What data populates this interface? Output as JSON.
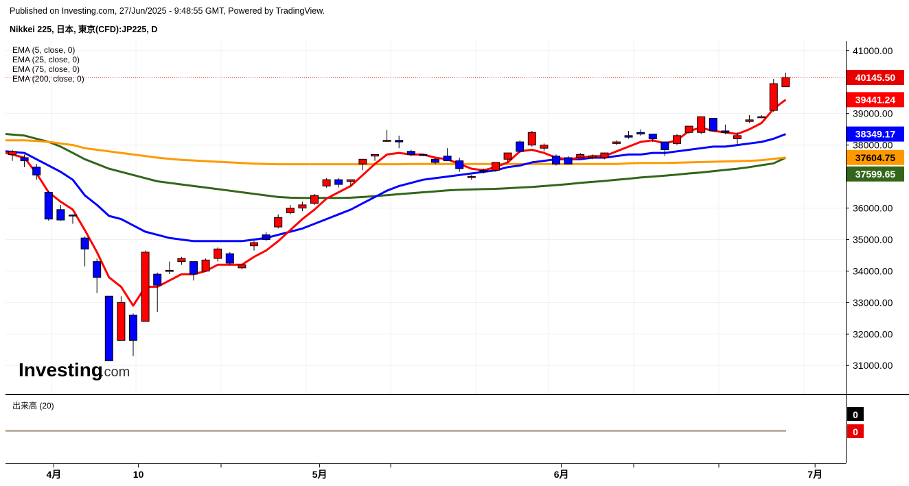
{
  "header": {
    "published": "Published on Investing.com, 27/Jun/2025 - 9:48:55 GMT, Powered by TradingView.",
    "symbol": "Nikkei 225, 日本, 東京(CFD):JP225, D"
  },
  "logo_text": {
    "main": "Investing",
    "suffix": ".com"
  },
  "volume_panel": {
    "label": "出来高 (20)",
    "values": [
      "0",
      "0"
    ]
  },
  "colors": {
    "up_candle": "#ff0000",
    "down_candle": "#0000ff",
    "ema5": "#ff0000",
    "ema25": "#0000ff",
    "ema75": "#ff9900",
    "ema200": "#33661a"
  },
  "chart_data": {
    "type": "candlestick",
    "ylim": [
      30200,
      41300
    ],
    "y_ticks": [
      {
        "value": 31000,
        "label": "31000.00"
      },
      {
        "value": 32000,
        "label": "32000.00"
      },
      {
        "value": 33000,
        "label": "33000.00"
      },
      {
        "value": 34000,
        "label": "34000.00"
      },
      {
        "value": 35000,
        "label": "35000.00"
      },
      {
        "value": 36000,
        "label": "36000.00"
      },
      {
        "value": 38000,
        "label": "38000.00"
      },
      {
        "value": 39000,
        "label": "39000.00"
      },
      {
        "value": 41000,
        "label": "41000.00"
      }
    ],
    "x_ticks": [
      {
        "label": "4月",
        "index": 4
      },
      {
        "label": "10",
        "index": 11
      },
      {
        "label": "5月",
        "index": 26
      },
      {
        "label": "6月",
        "index": 46
      },
      {
        "label": "7月",
        "index": 67
      }
    ],
    "candles": [
      {
        "o": 37700,
        "h": 37850,
        "l": 37500,
        "c": 37800
      },
      {
        "o": 37600,
        "h": 37700,
        "l": 37300,
        "c": 37500
      },
      {
        "o": 37300,
        "h": 37400,
        "l": 36900,
        "c": 37050
      },
      {
        "o": 36500,
        "h": 36550,
        "l": 35600,
        "c": 35650
      },
      {
        "o": 35950,
        "h": 36100,
        "l": 35600,
        "c": 35620
      },
      {
        "o": 35780,
        "h": 35800,
        "l": 35500,
        "c": 35760
      },
      {
        "o": 35050,
        "h": 35100,
        "l": 34150,
        "c": 34700
      },
      {
        "o": 34300,
        "h": 34400,
        "l": 33300,
        "c": 33800
      },
      {
        "o": 33200,
        "h": 33200,
        "l": 31150,
        "c": 31150
      },
      {
        "o": 31800,
        "h": 33200,
        "l": 31800,
        "c": 33000
      },
      {
        "o": 32600,
        "h": 32650,
        "l": 31300,
        "c": 31800
      },
      {
        "o": 32400,
        "h": 34650,
        "l": 32400,
        "c": 34600
      },
      {
        "o": 33900,
        "h": 33950,
        "l": 32700,
        "c": 33550
      },
      {
        "o": 34000,
        "h": 34300,
        "l": 33900,
        "c": 34020
      },
      {
        "o": 34300,
        "h": 34450,
        "l": 34200,
        "c": 34400
      },
      {
        "o": 34300,
        "h": 34300,
        "l": 33700,
        "c": 33900
      },
      {
        "o": 34000,
        "h": 34400,
        "l": 34000,
        "c": 34350
      },
      {
        "o": 34400,
        "h": 34750,
        "l": 34300,
        "c": 34700
      },
      {
        "o": 34550,
        "h": 34600,
        "l": 34200,
        "c": 34250
      },
      {
        "o": 34100,
        "h": 34200,
        "l": 34050,
        "c": 34200
      },
      {
        "o": 34800,
        "h": 34950,
        "l": 34650,
        "c": 34900
      },
      {
        "o": 35150,
        "h": 35250,
        "l": 34950,
        "c": 35000
      },
      {
        "o": 35400,
        "h": 35800,
        "l": 35350,
        "c": 35700
      },
      {
        "o": 35850,
        "h": 36100,
        "l": 35800,
        "c": 36000
      },
      {
        "o": 36000,
        "h": 36200,
        "l": 35900,
        "c": 36100
      },
      {
        "o": 36150,
        "h": 36450,
        "l": 36100,
        "c": 36400
      },
      {
        "o": 36700,
        "h": 36950,
        "l": 36650,
        "c": 36900
      },
      {
        "o": 36900,
        "h": 36950,
        "l": 36650,
        "c": 36750
      },
      {
        "o": 36850,
        "h": 36900,
        "l": 36700,
        "c": 36900
      },
      {
        "o": 37400,
        "h": 37500,
        "l": 37200,
        "c": 37550
      },
      {
        "o": 37650,
        "h": 37650,
        "l": 37500,
        "c": 37700
      },
      {
        "o": 38130,
        "h": 38480,
        "l": 38100,
        "c": 38150
      },
      {
        "o": 38150,
        "h": 38300,
        "l": 37900,
        "c": 38100
      },
      {
        "o": 37800,
        "h": 37850,
        "l": 37650,
        "c": 37700
      },
      {
        "o": 37700,
        "h": 37700,
        "l": 37650,
        "c": 37680
      },
      {
        "o": 37550,
        "h": 37600,
        "l": 37400,
        "c": 37450
      },
      {
        "o": 37650,
        "h": 37900,
        "l": 37500,
        "c": 37500
      },
      {
        "o": 37500,
        "h": 37600,
        "l": 37150,
        "c": 37250
      },
      {
        "o": 37000,
        "h": 37050,
        "l": 36900,
        "c": 37000
      },
      {
        "o": 37200,
        "h": 37250,
        "l": 37100,
        "c": 37150
      },
      {
        "o": 37200,
        "h": 37450,
        "l": 37150,
        "c": 37450
      },
      {
        "o": 37550,
        "h": 37700,
        "l": 37450,
        "c": 37750
      },
      {
        "o": 38100,
        "h": 38150,
        "l": 37750,
        "c": 37800
      },
      {
        "o": 38000,
        "h": 38450,
        "l": 37950,
        "c": 38400
      },
      {
        "o": 37900,
        "h": 38050,
        "l": 37800,
        "c": 38000
      },
      {
        "o": 37650,
        "h": 37700,
        "l": 37350,
        "c": 37400
      },
      {
        "o": 37600,
        "h": 37650,
        "l": 37400,
        "c": 37400
      },
      {
        "o": 37600,
        "h": 37750,
        "l": 37600,
        "c": 37700
      },
      {
        "o": 37600,
        "h": 37700,
        "l": 37550,
        "c": 37650
      },
      {
        "o": 37600,
        "h": 37750,
        "l": 37550,
        "c": 37750
      },
      {
        "o": 38050,
        "h": 38150,
        "l": 38000,
        "c": 38100
      },
      {
        "o": 38300,
        "h": 38450,
        "l": 38200,
        "c": 38250
      },
      {
        "o": 38400,
        "h": 38500,
        "l": 38300,
        "c": 38350
      },
      {
        "o": 38350,
        "h": 38350,
        "l": 38100,
        "c": 38200
      },
      {
        "o": 38100,
        "h": 38100,
        "l": 37650,
        "c": 37850
      },
      {
        "o": 38050,
        "h": 38350,
        "l": 38000,
        "c": 38300
      },
      {
        "o": 38400,
        "h": 38600,
        "l": 38350,
        "c": 38600
      },
      {
        "o": 38400,
        "h": 38900,
        "l": 38350,
        "c": 38900
      },
      {
        "o": 38850,
        "h": 38850,
        "l": 38550,
        "c": 38450
      },
      {
        "o": 38450,
        "h": 38650,
        "l": 38350,
        "c": 38400
      },
      {
        "o": 38200,
        "h": 38400,
        "l": 38000,
        "c": 38300
      },
      {
        "o": 38750,
        "h": 38950,
        "l": 38700,
        "c": 38800
      },
      {
        "o": 38900,
        "h": 38950,
        "l": 38850,
        "c": 38900
      },
      {
        "o": 39100,
        "h": 40100,
        "l": 39050,
        "c": 39950
      },
      {
        "o": 39850,
        "h": 40300,
        "l": 39850,
        "c": 40145.5
      }
    ],
    "series": [
      {
        "name": "EMA (5, close, 0)",
        "last_value": 39441.24,
        "label": "39441.24",
        "values": [
          37750,
          37600,
          37100,
          36500,
          36200,
          35950,
          35300,
          34600,
          33800,
          33500,
          32900,
          33500,
          33500,
          33700,
          33900,
          33900,
          34000,
          34200,
          34200,
          34200,
          34450,
          34650,
          34950,
          35300,
          35650,
          35950,
          36300,
          36500,
          36700,
          37050,
          37400,
          37700,
          37750,
          37700,
          37700,
          37600,
          37550,
          37400,
          37250,
          37200,
          37300,
          37450,
          37800,
          37850,
          37750,
          37600,
          37550,
          37600,
          37650,
          37650,
          37800,
          37950,
          38100,
          38150,
          38050,
          38150,
          38450,
          38550,
          38450,
          38400,
          38350,
          38500,
          38700,
          39150,
          39441.24
        ]
      },
      {
        "name": "EMA (25, close, 0)",
        "last_value": 38349.17,
        "label": "38349.17",
        "values": [
          37800,
          37750,
          37550,
          37350,
          37150,
          36900,
          36400,
          36100,
          35750,
          35650,
          35450,
          35250,
          35150,
          35050,
          35000,
          34950,
          34950,
          34950,
          34950,
          34950,
          35000,
          35050,
          35150,
          35250,
          35350,
          35500,
          35650,
          35800,
          35950,
          36150,
          36350,
          36550,
          36700,
          36800,
          36900,
          36950,
          37000,
          37050,
          37100,
          37150,
          37200,
          37300,
          37350,
          37450,
          37500,
          37550,
          37550,
          37550,
          37600,
          37600,
          37650,
          37700,
          37700,
          37750,
          37750,
          37800,
          37850,
          37900,
          37950,
          37950,
          38000,
          38050,
          38100,
          38200,
          38349.17
        ]
      },
      {
        "name": "EMA (75, close, 0)",
        "last_value": 37604.75,
        "label": "37604.75",
        "values": [
          38150,
          38150,
          38130,
          38100,
          38050,
          38000,
          37900,
          37850,
          37800,
          37750,
          37700,
          37650,
          37600,
          37560,
          37530,
          37510,
          37490,
          37470,
          37450,
          37430,
          37410,
          37400,
          37390,
          37390,
          37390,
          37390,
          37390,
          37390,
          37390,
          37390,
          37390,
          37390,
          37390,
          37400,
          37400,
          37400,
          37400,
          37400,
          37400,
          37400,
          37400,
          37400,
          37400,
          37400,
          37400,
          37400,
          37400,
          37400,
          37400,
          37400,
          37400,
          37420,
          37430,
          37430,
          37430,
          37440,
          37450,
          37460,
          37470,
          37480,
          37490,
          37500,
          37520,
          37560,
          37604.75
        ]
      },
      {
        "name": "EMA (200, close, 0)",
        "last_value": 37599.65,
        "label": "37599.65",
        "values": [
          38350,
          38300,
          38200,
          38100,
          37950,
          37750,
          37550,
          37400,
          37250,
          37150,
          37050,
          36950,
          36850,
          36800,
          36750,
          36700,
          36650,
          36600,
          36550,
          36500,
          36450,
          36400,
          36350,
          36330,
          36320,
          36320,
          36320,
          36320,
          36330,
          36350,
          36380,
          36410,
          36440,
          36470,
          36500,
          36530,
          36560,
          36580,
          36590,
          36600,
          36610,
          36630,
          36650,
          36670,
          36700,
          36730,
          36760,
          36800,
          36830,
          36860,
          36900,
          36930,
          36970,
          37000,
          37030,
          37060,
          37100,
          37130,
          37170,
          37210,
          37250,
          37300,
          37360,
          37420,
          37599.65
        ]
      }
    ],
    "last_price": {
      "value": 40145.5,
      "label": "40145.50"
    }
  }
}
